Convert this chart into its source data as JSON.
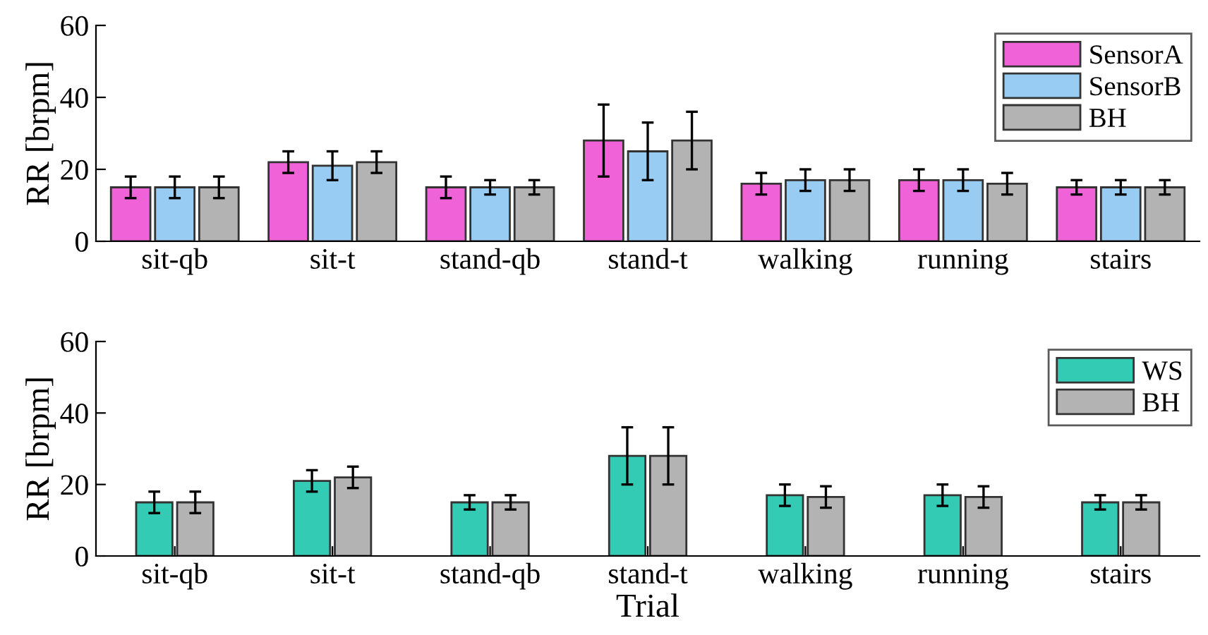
{
  "chart_data": [
    {
      "type": "bar",
      "ylabel": "RR [brpm]",
      "categories": [
        "sit-qb",
        "sit-t",
        "stand-qb",
        "stand-t",
        "walking",
        "running",
        "stairs"
      ],
      "ylim": [
        0,
        60
      ],
      "yticks": [
        0,
        20,
        40,
        60
      ],
      "legend": "top right",
      "grid": false,
      "series": [
        {
          "name": "SensorA",
          "color": "#f062d8",
          "values": [
            15,
            22,
            15,
            28,
            16,
            17,
            15
          ],
          "errors": [
            3,
            3,
            3,
            10,
            3,
            3,
            2
          ]
        },
        {
          "name": "SensorB",
          "color": "#99ccf2",
          "values": [
            15,
            21,
            15,
            25,
            17,
            17,
            15
          ],
          "errors": [
            3,
            4,
            2,
            8,
            3,
            3,
            2
          ]
        },
        {
          "name": "BH",
          "color": "#b3b3b3",
          "values": [
            15,
            22,
            15,
            28,
            17,
            16,
            15
          ],
          "errors": [
            3,
            3,
            2,
            8,
            3,
            3,
            2
          ]
        }
      ]
    },
    {
      "type": "bar",
      "ylabel": "RR [brpm]",
      "xlabel": "Trial",
      "categories": [
        "sit-qb",
        "sit-t",
        "stand-qb",
        "stand-t",
        "walking",
        "running",
        "stairs"
      ],
      "ylim": [
        0,
        60
      ],
      "yticks": [
        0,
        20,
        40,
        60
      ],
      "legend": "top right",
      "grid": false,
      "series": [
        {
          "name": "WS",
          "color": "#33cbb3",
          "values": [
            15,
            21,
            15,
            28,
            17,
            17,
            15
          ],
          "errors": [
            3,
            3,
            2,
            8,
            3,
            3,
            2
          ]
        },
        {
          "name": "BH",
          "color": "#b3b3b3",
          "values": [
            15,
            22,
            15,
            28,
            16.5,
            16.5,
            15
          ],
          "errors": [
            3,
            3,
            2,
            8,
            3,
            3,
            2
          ]
        }
      ]
    }
  ]
}
